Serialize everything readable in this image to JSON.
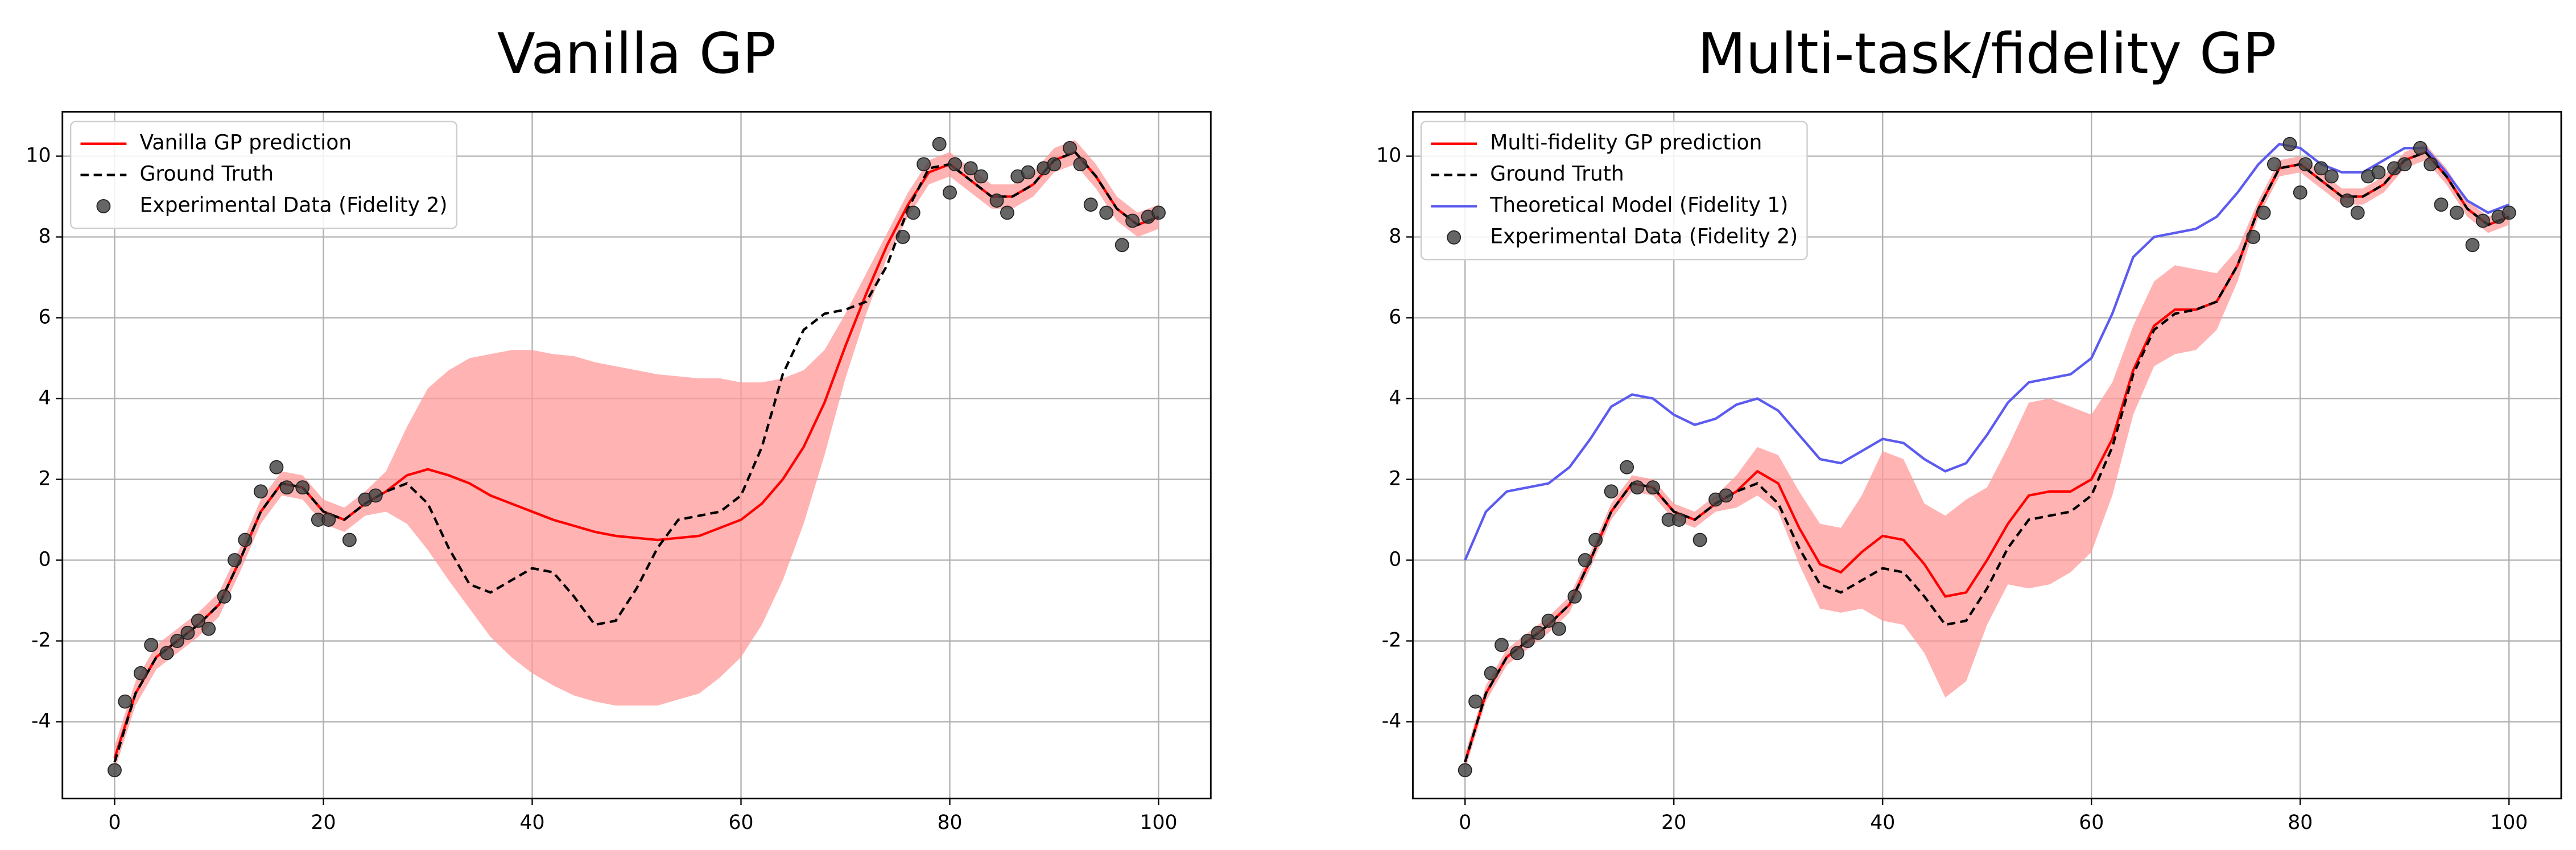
{
  "chart_data": [
    {
      "type": "line",
      "title": "Vanilla GP",
      "xlim": [
        -5,
        105
      ],
      "ylim": [
        -5.9,
        11.1
      ],
      "xticks": [
        0,
        20,
        40,
        60,
        80,
        100
      ],
      "yticks": [
        -4,
        -2,
        0,
        2,
        4,
        6,
        8,
        10
      ],
      "grid": true,
      "legend": "upper left",
      "x": [
        0,
        2,
        4,
        6,
        8,
        10,
        12,
        14,
        16,
        18,
        20,
        22,
        24,
        26,
        28,
        30,
        32,
        34,
        36,
        38,
        40,
        42,
        44,
        46,
        48,
        50,
        52,
        54,
        56,
        58,
        60,
        62,
        64,
        66,
        68,
        70,
        72,
        74,
        76,
        78,
        80,
        82,
        84,
        86,
        88,
        90,
        92,
        94,
        96,
        98,
        100
      ],
      "series": [
        {
          "name": "Vanilla GP prediction",
          "color": "#ff0000",
          "values": [
            -4.9,
            -3.3,
            -2.4,
            -2.0,
            -1.6,
            -1.1,
            0.0,
            1.2,
            1.9,
            1.8,
            1.2,
            1.0,
            1.4,
            1.7,
            2.1,
            2.25,
            2.1,
            1.9,
            1.6,
            1.4,
            1.2,
            1.0,
            0.85,
            0.7,
            0.6,
            0.55,
            0.5,
            0.55,
            0.6,
            0.8,
            1.0,
            1.4,
            2.0,
            2.8,
            3.9,
            5.3,
            6.6,
            7.8,
            8.8,
            9.6,
            9.8,
            9.4,
            9.0,
            9.0,
            9.3,
            9.9,
            10.1,
            9.5,
            8.7,
            8.3,
            8.5
          ],
          "band": {
            "color": "#ff9a9a",
            "lower": [
              -5.2,
              -3.6,
              -2.7,
              -2.3,
              -1.9,
              -1.4,
              -0.3,
              0.9,
              1.6,
              1.5,
              0.9,
              0.7,
              1.1,
              1.2,
              0.9,
              0.25,
              -0.5,
              -1.2,
              -1.9,
              -2.4,
              -2.8,
              -3.1,
              -3.35,
              -3.5,
              -3.6,
              -3.6,
              -3.6,
              -3.45,
              -3.3,
              -2.9,
              -2.4,
              -1.6,
              -0.5,
              0.9,
              2.6,
              4.5,
              6.1,
              7.5,
              8.5,
              9.3,
              9.5,
              9.1,
              8.7,
              8.7,
              9.0,
              9.6,
              9.8,
              9.2,
              8.4,
              8.0,
              8.2
            ],
            "upper": [
              -4.6,
              -3.0,
              -2.1,
              -1.7,
              -1.3,
              -0.8,
              0.3,
              1.5,
              2.2,
              2.1,
              1.5,
              1.3,
              1.7,
              2.2,
              3.3,
              4.25,
              4.7,
              5.0,
              5.1,
              5.2,
              5.2,
              5.1,
              5.05,
              4.9,
              4.8,
              4.7,
              4.6,
              4.55,
              4.5,
              4.5,
              4.4,
              4.4,
              4.5,
              4.7,
              5.2,
              6.1,
              7.1,
              8.1,
              9.1,
              9.9,
              10.1,
              9.7,
              9.3,
              9.3,
              9.6,
              10.2,
              10.4,
              9.8,
              9.0,
              8.6,
              8.8
            ]
          }
        },
        {
          "name": "Ground Truth",
          "color": "#000000",
          "linestyle": "dashed",
          "values": [
            -5.0,
            -3.3,
            -2.4,
            -2.0,
            -1.6,
            -1.1,
            0.0,
            1.2,
            1.9,
            1.8,
            1.2,
            1.0,
            1.4,
            1.7,
            1.9,
            1.4,
            0.3,
            -0.6,
            -0.8,
            -0.5,
            -0.2,
            -0.3,
            -0.9,
            -1.6,
            -1.5,
            -0.7,
            0.3,
            1.0,
            1.1,
            1.2,
            1.6,
            2.8,
            4.6,
            5.7,
            6.1,
            6.2,
            6.4,
            7.3,
            8.7,
            9.7,
            9.8,
            9.4,
            9.0,
            9.0,
            9.3,
            9.9,
            10.1,
            9.5,
            8.7,
            8.3,
            8.5
          ]
        },
        {
          "name": "Experimental Data (Fidelity 2)",
          "type": "scatter",
          "color": "#404040",
          "x": [
            0,
            1,
            2.5,
            3.5,
            5,
            6,
            7,
            8,
            9,
            10.5,
            11.5,
            12.5,
            14,
            15.5,
            16.5,
            18,
            19.5,
            20.5,
            22.5,
            24,
            25,
            75.5,
            76.5,
            77.5,
            79,
            80,
            80.5,
            82,
            83,
            84.5,
            85.5,
            86.5,
            87.5,
            89,
            90,
            91.5,
            92.5,
            93.5,
            95,
            96.5,
            97.5,
            99,
            100
          ],
          "values": [
            -5.2,
            -3.5,
            -2.8,
            -2.1,
            -2.3,
            -2.0,
            -1.8,
            -1.5,
            -1.7,
            -0.9,
            0.0,
            0.5,
            1.7,
            2.3,
            1.8,
            1.8,
            1.0,
            1.0,
            0.5,
            1.5,
            1.6,
            8.0,
            8.6,
            9.8,
            10.3,
            9.1,
            9.8,
            9.7,
            9.5,
            8.9,
            8.6,
            9.5,
            9.6,
            9.7,
            9.8,
            10.2,
            9.8,
            8.8,
            8.6,
            7.8,
            8.4,
            8.5,
            8.6
          ]
        }
      ]
    },
    {
      "type": "line",
      "title": "Multi-task/fidelity GP",
      "xlim": [
        -5,
        105
      ],
      "ylim": [
        -5.9,
        11.1
      ],
      "xticks": [
        0,
        20,
        40,
        60,
        80,
        100
      ],
      "yticks": [
        -4,
        -2,
        0,
        2,
        4,
        6,
        8,
        10
      ],
      "grid": true,
      "legend": "upper left",
      "x": [
        0,
        2,
        4,
        6,
        8,
        10,
        12,
        14,
        16,
        18,
        20,
        22,
        24,
        26,
        28,
        30,
        32,
        34,
        36,
        38,
        40,
        42,
        44,
        46,
        48,
        50,
        52,
        54,
        56,
        58,
        60,
        62,
        64,
        66,
        68,
        70,
        72,
        74,
        76,
        78,
        80,
        82,
        84,
        86,
        88,
        90,
        92,
        94,
        96,
        98,
        100
      ],
      "series": [
        {
          "name": "Multi-fidelity GP prediction",
          "color": "#ff0000",
          "values": [
            -5.0,
            -3.3,
            -2.4,
            -2.0,
            -1.6,
            -1.1,
            0.0,
            1.2,
            1.9,
            1.8,
            1.2,
            1.0,
            1.4,
            1.7,
            2.2,
            1.9,
            0.8,
            -0.1,
            -0.3,
            0.2,
            0.6,
            0.5,
            -0.1,
            -0.9,
            -0.8,
            0.0,
            0.9,
            1.6,
            1.7,
            1.7,
            2.0,
            3.0,
            4.7,
            5.8,
            6.2,
            6.2,
            6.4,
            7.3,
            8.7,
            9.7,
            9.8,
            9.4,
            9.0,
            9.0,
            9.3,
            9.9,
            10.1,
            9.5,
            8.7,
            8.3,
            8.5
          ],
          "band": {
            "color": "#ff9a9a",
            "lower": [
              -5.2,
              -3.5,
              -2.6,
              -2.2,
              -1.8,
              -1.3,
              -0.2,
              1.0,
              1.7,
              1.6,
              1.0,
              0.8,
              1.2,
              1.3,
              1.6,
              1.2,
              -0.1,
              -1.2,
              -1.3,
              -1.2,
              -1.5,
              -1.6,
              -2.3,
              -3.4,
              -3.0,
              -1.6,
              -0.6,
              -0.7,
              -0.6,
              -0.3,
              0.2,
              1.6,
              3.6,
              4.8,
              5.1,
              5.2,
              5.7,
              6.9,
              8.5,
              9.5,
              9.6,
              9.2,
              8.8,
              8.8,
              9.1,
              9.7,
              9.9,
              9.3,
              8.5,
              8.1,
              8.3
            ],
            "upper": [
              -4.8,
              -3.1,
              -2.2,
              -1.8,
              -1.4,
              -0.9,
              0.2,
              1.4,
              2.1,
              2.0,
              1.4,
              1.2,
              1.6,
              2.1,
              2.8,
              2.6,
              1.7,
              0.9,
              0.8,
              1.6,
              2.7,
              2.5,
              1.4,
              1.1,
              1.5,
              1.8,
              2.8,
              3.9,
              4.0,
              3.8,
              3.6,
              4.4,
              5.8,
              6.9,
              7.3,
              7.2,
              7.1,
              7.7,
              8.9,
              9.9,
              10.0,
              9.6,
              9.2,
              9.2,
              9.5,
              10.1,
              10.3,
              9.7,
              8.9,
              8.5,
              8.7
            ]
          }
        },
        {
          "name": "Ground Truth",
          "color": "#000000",
          "linestyle": "dashed",
          "values": [
            -5.0,
            -3.3,
            -2.4,
            -2.0,
            -1.6,
            -1.1,
            0.0,
            1.2,
            1.9,
            1.8,
            1.2,
            1.0,
            1.4,
            1.7,
            1.9,
            1.4,
            0.3,
            -0.6,
            -0.8,
            -0.5,
            -0.2,
            -0.3,
            -0.9,
            -1.6,
            -1.5,
            -0.7,
            0.3,
            1.0,
            1.1,
            1.2,
            1.6,
            2.8,
            4.6,
            5.7,
            6.1,
            6.2,
            6.4,
            7.3,
            8.7,
            9.7,
            9.8,
            9.4,
            9.0,
            9.0,
            9.3,
            9.9,
            10.1,
            9.5,
            8.7,
            8.3,
            8.5
          ]
        },
        {
          "name": "Theoretical Model (Fidelity 1)",
          "color": "#5b5bf0",
          "values": [
            0.0,
            1.2,
            1.7,
            1.8,
            1.9,
            2.3,
            3.0,
            3.8,
            4.1,
            4.0,
            3.6,
            3.35,
            3.5,
            3.85,
            4.0,
            3.7,
            3.1,
            2.5,
            2.4,
            2.7,
            3.0,
            2.9,
            2.5,
            2.2,
            2.4,
            3.1,
            3.9,
            4.4,
            4.5,
            4.6,
            5.0,
            6.1,
            7.5,
            8.0,
            8.1,
            8.2,
            8.5,
            9.1,
            9.8,
            10.3,
            10.2,
            9.8,
            9.6,
            9.6,
            9.9,
            10.2,
            10.2,
            9.6,
            8.9,
            8.6,
            8.8
          ]
        },
        {
          "name": "Experimental Data (Fidelity 2)",
          "type": "scatter",
          "color": "#404040",
          "x": [
            0,
            1,
            2.5,
            3.5,
            5,
            6,
            7,
            8,
            9,
            10.5,
            11.5,
            12.5,
            14,
            15.5,
            16.5,
            18,
            19.5,
            20.5,
            22.5,
            24,
            25,
            75.5,
            76.5,
            77.5,
            79,
            80,
            80.5,
            82,
            83,
            84.5,
            85.5,
            86.5,
            87.5,
            89,
            90,
            91.5,
            92.5,
            93.5,
            95,
            96.5,
            97.5,
            99,
            100
          ],
          "values": [
            -5.2,
            -3.5,
            -2.8,
            -2.1,
            -2.3,
            -2.0,
            -1.8,
            -1.5,
            -1.7,
            -0.9,
            0.0,
            0.5,
            1.7,
            2.3,
            1.8,
            1.8,
            1.0,
            1.0,
            0.5,
            1.5,
            1.6,
            8.0,
            8.6,
            9.8,
            10.3,
            9.1,
            9.8,
            9.7,
            9.5,
            8.9,
            8.6,
            9.5,
            9.6,
            9.7,
            9.8,
            10.2,
            9.8,
            8.8,
            8.6,
            7.8,
            8.4,
            8.5,
            8.6
          ]
        }
      ]
    }
  ]
}
